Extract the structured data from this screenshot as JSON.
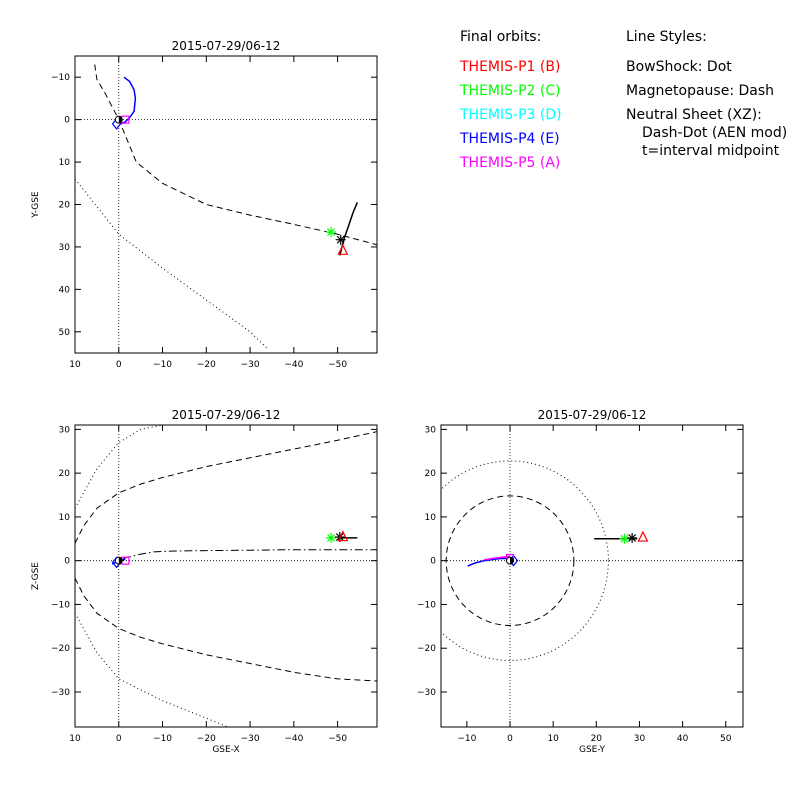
{
  "legend": {
    "heading": "Final orbits:",
    "probes": [
      {
        "label": "THEMIS-P1 (B)",
        "color": "#ff0000"
      },
      {
        "label": "THEMIS-P2 (C)",
        "color": "#00ff00"
      },
      {
        "label": "THEMIS-P3 (D)",
        "color": "#00ffff"
      },
      {
        "label": "THEMIS-P4 (E)",
        "color": "#0000ff"
      },
      {
        "label": "THEMIS-P5 (A)",
        "color": "#ff00ff"
      }
    ]
  },
  "line_styles": {
    "heading": "Line Styles:",
    "lines": [
      "BowShock: Dot",
      "Magnetopause: Dash",
      "Neutral Sheet (XZ):",
      "Dash-Dot (AEN mod)",
      "t=interval midpoint"
    ]
  },
  "chart_data": [
    {
      "type": "line",
      "title": "2015-07-29/06-12",
      "xlabel": "",
      "ylabel": "Y-GSE",
      "xlim": [
        10,
        -59
      ],
      "ylim": [
        55,
        -15
      ],
      "xticks": [
        10,
        0,
        -10,
        -20,
        -30,
        -40,
        -50
      ],
      "xticklabels": [
        "10",
        "0",
        "−10",
        "−20",
        "−30",
        "−40",
        "−50"
      ],
      "yticks": [
        -10,
        0,
        10,
        20,
        30,
        40,
        50
      ],
      "yticklabels": [
        "−10",
        "0",
        "10",
        "20",
        "30",
        "40",
        "50"
      ],
      "series": [
        {
          "style": "dash",
          "color": "#000000",
          "x": [
            5.5,
            5,
            3,
            0,
            -4,
            -10,
            -20,
            -30,
            -40,
            -50,
            -59
          ],
          "y": [
            -13,
            -9.5,
            -6,
            0,
            10,
            15,
            20,
            22.5,
            24.7,
            27,
            29.5
          ]
        },
        {
          "style": "dot",
          "color": "#000000",
          "x": [
            10,
            0,
            -10,
            -20,
            -30,
            -34
          ],
          "y": [
            14,
            27,
            35,
            42.5,
            50,
            54
          ]
        },
        {
          "style": "solid",
          "color": "#0000ff",
          "x": [
            -1.2,
            -2.5,
            -3.5,
            -3.8,
            -3.5,
            -2.5,
            -1.5,
            -0.5
          ],
          "y": [
            -10,
            -9,
            -7,
            -5,
            -2,
            -0.5,
            0.5,
            1
          ]
        },
        {
          "style": "solid",
          "color": "#000000",
          "x": [
            -50.5,
            -51.5,
            -52.5,
            -53.5,
            -54.5
          ],
          "y": [
            32,
            28,
            25,
            22,
            19.5
          ]
        }
      ],
      "markers": [
        {
          "symbol": "asterisk",
          "color": "#00ff00",
          "x": -48.5,
          "y": 26.5
        },
        {
          "symbol": "asterisk",
          "color": "#000000",
          "x": -50.7,
          "y": 28.3
        },
        {
          "symbol": "triangle",
          "color": "#ff0000",
          "x": -51.2,
          "y": 30.8
        },
        {
          "symbol": "diamond",
          "color": "#0000ff",
          "x": 0.5,
          "y": 1
        },
        {
          "symbol": "square",
          "color": "#ff00ff",
          "x": -1.5,
          "y": 0
        },
        {
          "symbol": "earth",
          "color": "#000000",
          "x": 0,
          "y": 0
        }
      ]
    },
    {
      "type": "line",
      "title": "2015-07-29/06-12",
      "xlabel": "GSE-X",
      "ylabel": "Z-GSE",
      "xlim": [
        10,
        -59
      ],
      "ylim": [
        -38,
        31
      ],
      "xticks": [
        10,
        0,
        -10,
        -20,
        -30,
        -40,
        -50
      ],
      "xticklabels": [
        "10",
        "0",
        "−10",
        "−20",
        "−30",
        "−40",
        "−50"
      ],
      "yticks": [
        -30,
        -20,
        -10,
        0,
        10,
        20,
        30
      ],
      "yticklabels": [
        "−30",
        "−20",
        "−10",
        "0",
        "10",
        "20",
        "30"
      ],
      "series": [
        {
          "style": "dash",
          "color": "#000000",
          "x": [
            10,
            8,
            5,
            0,
            -5,
            -10,
            -20,
            -30,
            -40,
            -50,
            -59
          ],
          "y": [
            4,
            8,
            12,
            15.5,
            17.5,
            19,
            21.5,
            23.5,
            25.5,
            27.5,
            29.5
          ]
        },
        {
          "style": "dash",
          "color": "#000000",
          "x": [
            10,
            8,
            5,
            0,
            -5,
            -10,
            -20,
            -30,
            -40,
            -50,
            -59
          ],
          "y": [
            -4,
            -8,
            -12,
            -15.5,
            -17.5,
            -19,
            -21.5,
            -23.5,
            -25.5,
            -27,
            -27.5
          ]
        },
        {
          "style": "dot",
          "color": "#000000",
          "x": [
            10,
            5,
            0,
            -5,
            -10
          ],
          "y": [
            12,
            21,
            27,
            30,
            31
          ]
        },
        {
          "style": "dot",
          "color": "#000000",
          "x": [
            10,
            5,
            0,
            -10,
            -20,
            -25
          ],
          "y": [
            -12,
            -21,
            -27,
            -32,
            -36,
            -38
          ]
        },
        {
          "style": "dashdot",
          "color": "#000000",
          "x": [
            -1,
            -3,
            -5,
            -8,
            -12,
            -20,
            -30,
            -40,
            -50,
            -59
          ],
          "y": [
            0.5,
            1,
            1.5,
            2,
            2.2,
            2.3,
            2.4,
            2.5,
            2.5,
            2.5
          ]
        },
        {
          "style": "solid",
          "color": "#0000ff",
          "x": [
            1.5,
            1,
            0,
            -1,
            -1.5
          ],
          "y": [
            -0.8,
            -0.5,
            0,
            0.2,
            0.3
          ]
        },
        {
          "style": "solid",
          "color": "#000000",
          "x": [
            -50.5,
            -54.5
          ],
          "y": [
            5.2,
            5.2
          ]
        }
      ],
      "markers": [
        {
          "symbol": "asterisk",
          "color": "#00ff00",
          "x": -48.5,
          "y": 5.2
        },
        {
          "symbol": "asterisk",
          "color": "#000000",
          "x": -50.5,
          "y": 5.4
        },
        {
          "symbol": "triangle",
          "color": "#ff0000",
          "x": -51.2,
          "y": 5.5
        },
        {
          "symbol": "diamond",
          "color": "#0000ff",
          "x": 0.5,
          "y": -0.4
        },
        {
          "symbol": "square",
          "color": "#ff00ff",
          "x": -1.5,
          "y": 0
        },
        {
          "symbol": "earth",
          "color": "#000000",
          "x": 0,
          "y": 0
        }
      ]
    },
    {
      "type": "line",
      "title": "2015-07-29/06-12",
      "xlabel": "GSE-Y",
      "ylabel": "",
      "xlim": [
        -16,
        54
      ],
      "ylim": [
        -38,
        31
      ],
      "xticks": [
        -10,
        0,
        10,
        20,
        30,
        40,
        50
      ],
      "xticklabels": [
        "−10",
        "0",
        "10",
        "20",
        "30",
        "40",
        "50"
      ],
      "yticks": [
        -30,
        -20,
        -10,
        0,
        10,
        20,
        30
      ],
      "yticklabels": [
        "−30",
        "−20",
        "−10",
        "0",
        "10",
        "20",
        "30"
      ],
      "circles": [
        {
          "style": "dash",
          "color": "#000000",
          "r": 14.8
        },
        {
          "style": "dot",
          "color": "#000000",
          "r": 22.8
        }
      ],
      "series": [
        {
          "style": "solid",
          "color": "#0000ff",
          "x": [
            -9.8,
            -8,
            -6,
            -4,
            -2,
            -0.5
          ],
          "y": [
            -1.2,
            -0.5,
            0,
            0.3,
            0.5,
            0.5
          ]
        },
        {
          "style": "solid",
          "color": "#ff00ff",
          "x": [
            -6,
            -4,
            -2,
            0
          ],
          "y": [
            0.2,
            0.5,
            0.8,
            1
          ]
        },
        {
          "style": "solid",
          "color": "#000000",
          "x": [
            19.5,
            29.5
          ],
          "y": [
            5,
            5
          ]
        }
      ],
      "markers": [
        {
          "symbol": "asterisk",
          "color": "#00ff00",
          "x": 26.5,
          "y": 5
        },
        {
          "symbol": "asterisk",
          "color": "#000000",
          "x": 28.3,
          "y": 5.2
        },
        {
          "symbol": "triangle",
          "color": "#ff0000",
          "x": 30.8,
          "y": 5.4
        },
        {
          "symbol": "diamond",
          "color": "#0000ff",
          "x": 0.8,
          "y": 0
        },
        {
          "symbol": "square",
          "color": "#ff00ff",
          "x": 0,
          "y": 0.6
        },
        {
          "symbol": "earth",
          "color": "#000000",
          "x": 0,
          "y": 0
        }
      ]
    }
  ]
}
